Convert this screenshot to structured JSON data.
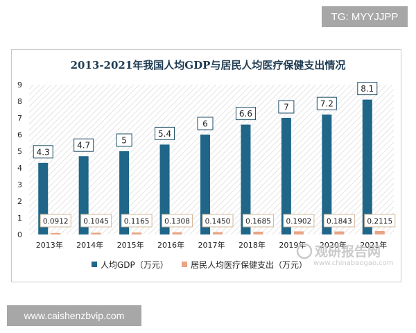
{
  "corner_tag": "TG: MYYJJPP",
  "url_tag": "www.caishenzbvip.com",
  "watermark": {
    "main": "观研报告网",
    "sub": "www.chinabaogao.com"
  },
  "chart_data": {
    "type": "bar",
    "title": "2013-2021年我国人均GDP与居民人均医疗保健支出情况",
    "categories": [
      "2013年",
      "2014年",
      "2015年",
      "2016年",
      "2017年",
      "2018年",
      "2019年",
      "2020年",
      "2021年"
    ],
    "series": [
      {
        "name": "人均GDP（万元）",
        "color": "#1f6689",
        "values": [
          4.3,
          4.7,
          5,
          5.4,
          6,
          6.6,
          7,
          7.2,
          8.1
        ],
        "labels": [
          "4.3",
          "4.7",
          "5",
          "5.4",
          "6",
          "6.6",
          "7",
          "7.2",
          "8.1"
        ]
      },
      {
        "name": "居民人均医疗保健支出（万元）",
        "color": "#e8a483",
        "values": [
          0.0912,
          0.1045,
          0.1165,
          0.1308,
          0.145,
          0.1685,
          0.1902,
          0.1843,
          0.2115
        ],
        "labels": [
          "0.0912",
          "0.1045",
          "0.1165",
          "0.1308",
          "0.1450",
          "0.1685",
          "0.1902",
          "0.1843",
          "0.2115"
        ]
      }
    ],
    "yticks": [
      "0",
      "1",
      "2",
      "3",
      "4",
      "5",
      "6",
      "7",
      "8",
      "9"
    ],
    "ylim": [
      0,
      9
    ],
    "legend_position": "bottom",
    "grid": false,
    "plot_background": "diagonal-hatch"
  }
}
